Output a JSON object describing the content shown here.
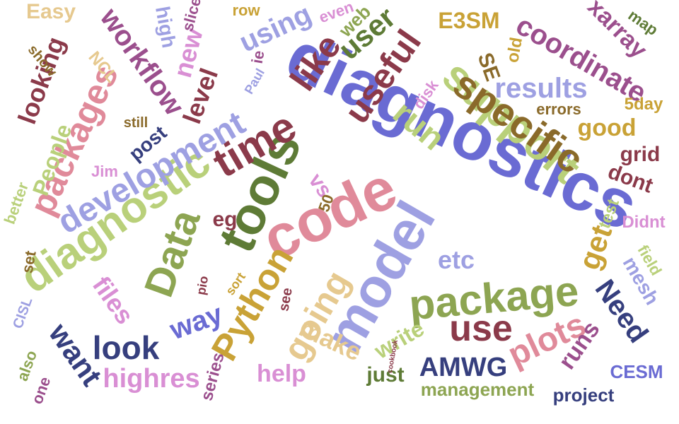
{
  "palette": {
    "blue": "#6a6bd3",
    "lavender": "#9ea0e2",
    "green": "#5e7b36",
    "olive": "#8da552",
    "lime": "#b9d07a",
    "maroon": "#8b3a4a",
    "pink": "#e08a9a",
    "plum": "#9b4f8d",
    "orchid": "#d98fd4",
    "brown": "#8a6a2a",
    "gold": "#c9a236",
    "tan": "#e6c98f",
    "navy": "#363f7e"
  },
  "words": [
    "diagnostics",
    "code",
    "tools",
    "model",
    "support",
    "time",
    "package",
    "specific",
    "diagnostic",
    "Data",
    "development",
    "packages",
    "Python",
    "like",
    "useful",
    "use",
    "plots",
    "going",
    "run",
    "results",
    "look",
    "want",
    "Need",
    "make",
    "using",
    "user",
    "workflow",
    "coordinate",
    "xarray",
    "level",
    "new",
    "AMWG",
    "E3SM",
    "highres",
    "People",
    "looking",
    "get",
    "way",
    "etc",
    "files",
    "good",
    "grid",
    "dont",
    "runs",
    "write",
    "CESM",
    "help",
    "mesh",
    "eg",
    "vs",
    "SE",
    "Easy",
    "high",
    "slice",
    "web",
    "post",
    "just",
    "management",
    "project",
    "field",
    "test",
    "Didnt",
    "errors",
    "5day",
    "map",
    "row",
    "even",
    "old",
    "disk",
    "NCL",
    "ie",
    "Paul",
    "Jim",
    "50",
    "still",
    "see",
    "sort",
    "series",
    "also",
    "one",
    "set",
    "better",
    "show",
    "CISL",
    "pio",
    "cookbook"
  ]
}
